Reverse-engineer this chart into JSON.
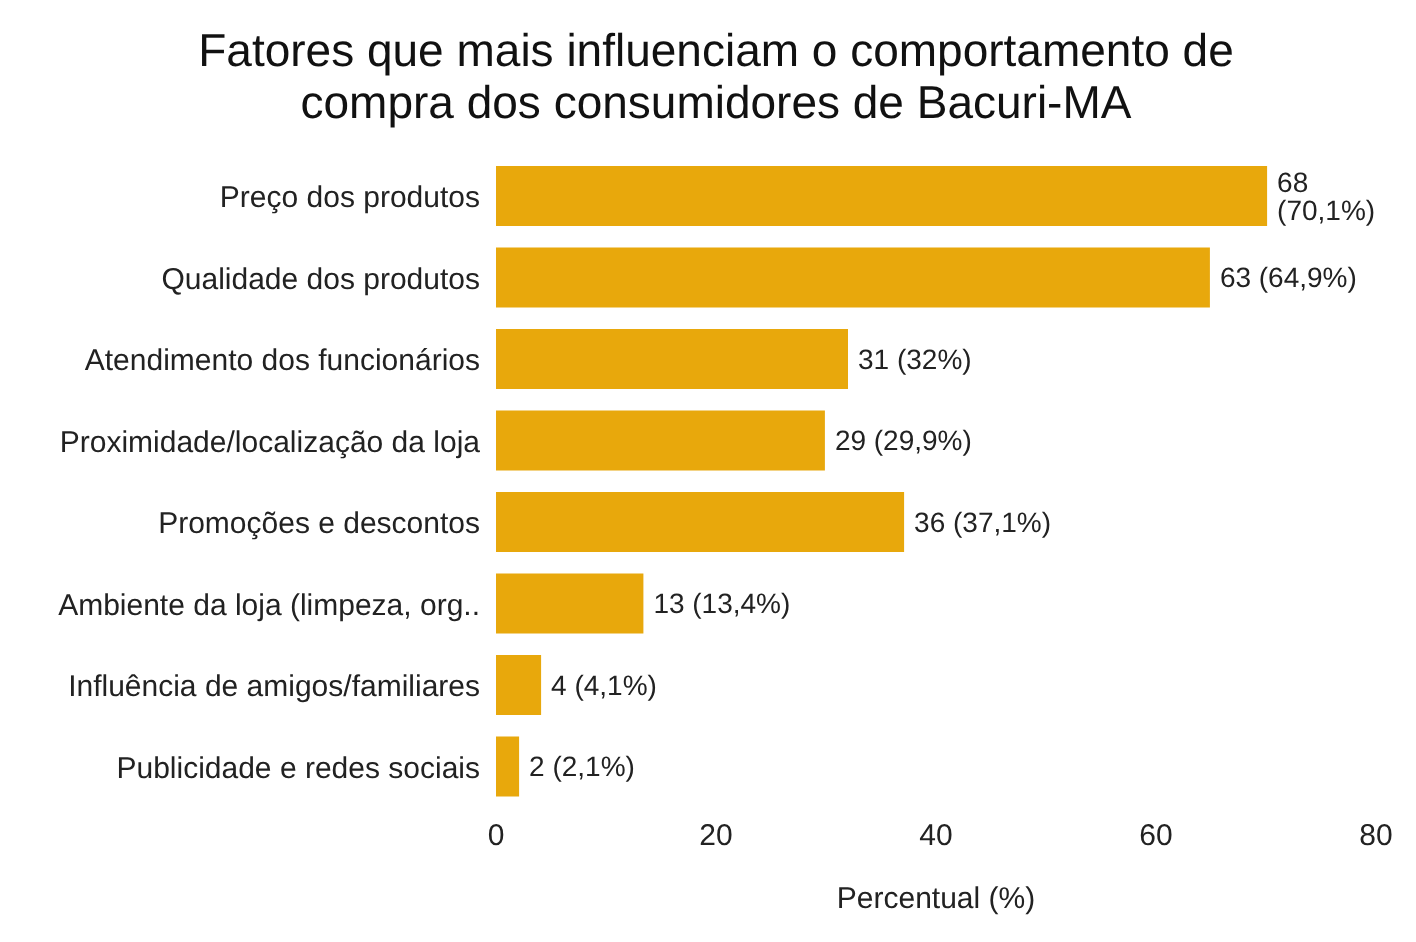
{
  "chart_data": {
    "type": "bar",
    "orientation": "horizontal",
    "title": "Fatores que mais influenciam o comportamento de compra dos consumidores de Bacuri-MA",
    "xlabel": "Percentual (%)",
    "categories": [
      "Preço dos produtos",
      "Qualidade dos produtos",
      "Atendimento dos funcionários",
      "Proximidade/localização da loja",
      "Promoções e descontos",
      "Ambiente da loja (limpeza, org..",
      "Influência de amigos/familiares",
      "Publicidade e redes sociais"
    ],
    "values": [
      70.1,
      64.9,
      32,
      29.9,
      37.1,
      13.4,
      4.1,
      2.1
    ],
    "value_labels": [
      "68 (70,1%)",
      "63 (64,9%)",
      "31 (32%)",
      "29 (29,9%)",
      "36 (37,1%)",
      "13 (13,4%)",
      "4 (4,1%)",
      "2 (2,1%)"
    ],
    "color": "#e8a80c",
    "xlim": [
      0,
      80
    ],
    "xticks": [
      0,
      20,
      40,
      60,
      80
    ],
    "grid": false,
    "legend": false
  }
}
